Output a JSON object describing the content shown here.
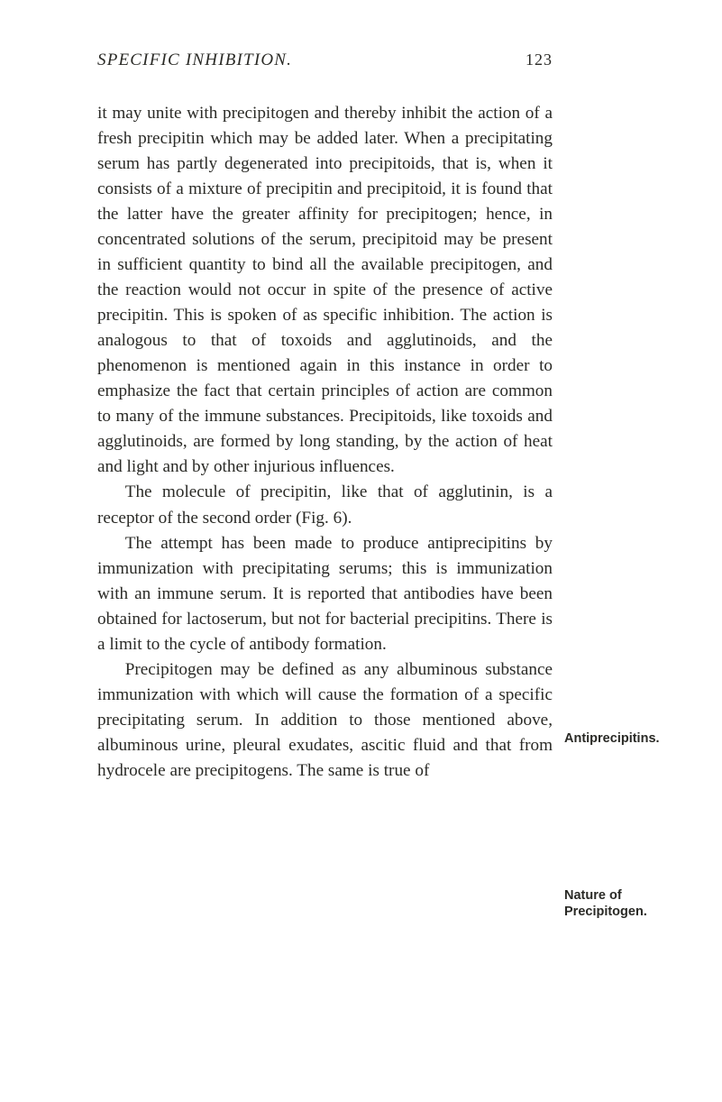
{
  "header": {
    "title": "SPECIFIC INHIBITION.",
    "page_number": "123"
  },
  "body": {
    "p1": "it may unite with precipitogen and thereby inhibit the action of a fresh precipitin which may be added later. When a precipitating serum has partly degenerated into precipitoids, that is, when it consists of a mixture of precipitin and precipi­toid, it is found that the latter have the greater affinity for precipitogen; hence, in concentrated solutions of the serum, precipitoid may be present in sufficient quantity to bind all the available pre­cipitogen, and the reaction would not occur in spite of the presence of active precipitin. This is spoken of as specific inhibition. The action is analogous to that of toxoids and agglutinoids, and the phenomenon is mentioned again in this in­stance in order to emphasize the fact that certain principles of action are common to many of the immune substances. Precipitoids, like toxoids and agglutinoids, are formed by long standing, by the action of heat and light and by other injurious in­fluences.",
    "p2": "The molecule of precipitin, like that of agglu­tinin, is a receptor of the second order (Fig. 6).",
    "p3": "The attempt has been made to produce antipre­cipitins by immunization with precipitating serums; this is immunization with an immune serum. It is reported that antibodies have been obtained for lactoserum, but not for bacterial pre­cipitins. There is a limit to the cycle of antibody formation.",
    "p4": "Precipitogen may be defined as any albuminous substance immunization with which will cause the formation of a specific precipitating serum. In addition to those mentioned above, albuminous urine, pleural exudates, ascitic fluid and that from hydrocele are precipitogens. The same is true of"
  },
  "margin_notes": {
    "n1": "Antiprecipitins.",
    "n2_line1": "Nature of",
    "n2_line2": "Precipitogen."
  }
}
